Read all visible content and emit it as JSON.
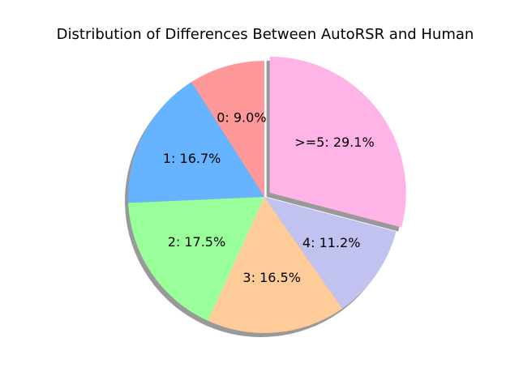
{
  "chart_data": {
    "type": "pie",
    "title": "Distribution of Differences Between AutoRSR and Human",
    "values": [
      9.0,
      16.7,
      17.5,
      16.5,
      11.2,
      29.1
    ],
    "value_labels": [
      "0: 9.0%",
      "1: 16.7%",
      "2: 17.5%",
      "3: 16.5%",
      "4: 11.2%",
      ">=5: 29.1%"
    ],
    "colors": [
      "#ff9999",
      "#66b3ff",
      "#99ff99",
      "#ffcc99",
      "#c2c2f0",
      "#ffb3e6"
    ],
    "explode": [
      0,
      0,
      0,
      0,
      0,
      0.05
    ],
    "start_angle": 90,
    "shadow": true
  }
}
